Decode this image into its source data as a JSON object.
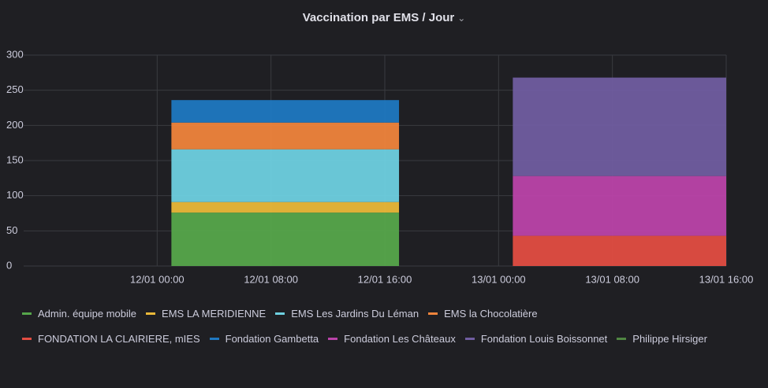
{
  "chart_data": {
    "type": "bar",
    "stacked": true,
    "title": "Vaccination par EMS / Jour",
    "x": [
      "12/01",
      "13/01"
    ],
    "xlim": [
      "11/01 16:00",
      "13/01 16:00"
    ],
    "xticks": [
      "12/01 00:00",
      "12/01 08:00",
      "12/01 16:00",
      "13/01 00:00",
      "13/01 08:00",
      "13/01 16:00"
    ],
    "ylim": [
      0,
      300
    ],
    "yticks": [
      0,
      50,
      100,
      150,
      200,
      250,
      300
    ],
    "grid": true,
    "series": [
      {
        "name": "Admin. équipe mobile",
        "color": "#56a64b",
        "values": [
          76,
          null
        ]
      },
      {
        "name": "EMS LA MERIDIENNE",
        "color": "#eab839",
        "values": [
          15,
          null
        ]
      },
      {
        "name": "EMS Les Jardins Du Léman",
        "color": "#6ed0e0",
        "values": [
          75,
          null
        ]
      },
      {
        "name": "EMS la Chocolatière",
        "color": "#ef843c",
        "values": [
          38,
          null
        ]
      },
      {
        "name": "FONDATION LA CLAIRIERE, mIES",
        "color": "#e24d42",
        "values": [
          null,
          43
        ]
      },
      {
        "name": "Fondation Gambetta",
        "color": "#1f78c1",
        "values": [
          32,
          null
        ]
      },
      {
        "name": "Fondation Les Châteaux",
        "color": "#ba43a9",
        "values": [
          null,
          85
        ]
      },
      {
        "name": "Fondation Louis Boissonnet",
        "color": "#705da0",
        "values": [
          null,
          140
        ]
      },
      {
        "name": "Philippe Hirsiger",
        "color": "#508642",
        "values": [
          null,
          null
        ]
      }
    ]
  }
}
